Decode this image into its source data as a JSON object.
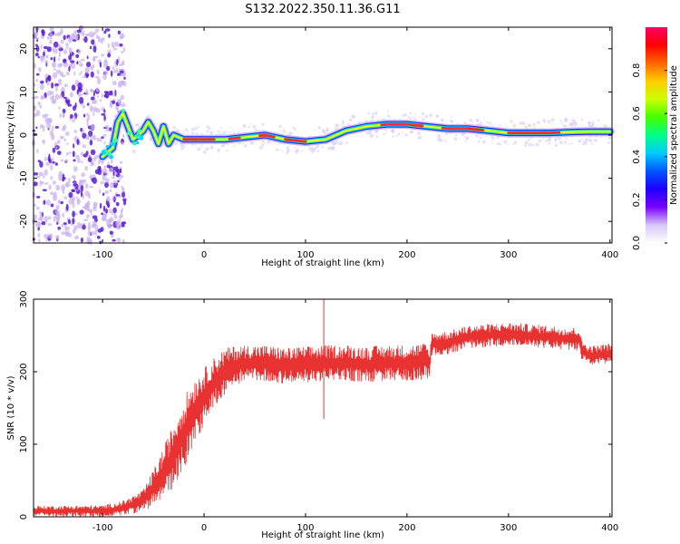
{
  "title": "S132.2022.350.11.36.G11",
  "colors": {
    "snr_line": "#e83232",
    "spectrum_track": "#ff2a2a",
    "scatter_light": "#c9b0f0",
    "scatter_dark": "#5a1fd6"
  },
  "chart_data": [
    {
      "type": "heatmap",
      "title": "S132.2022.350.11.36.G11",
      "xlabel": "Height of straight line (km)",
      "ylabel": "Frequency (Hz)",
      "xlim": [
        -168,
        402
      ],
      "ylim": [
        -25,
        25
      ],
      "xticks": [
        "-100",
        "0",
        "100",
        "200",
        "300",
        "400"
      ],
      "yticks": [
        "-20",
        "-10",
        "0",
        "10",
        "20"
      ],
      "colorbar": {
        "label": "Normalized spectral amplitude",
        "range": [
          0,
          1
        ],
        "ticks": [
          "0.0",
          "0.2",
          "0.4",
          "0.6",
          "0.8"
        ],
        "colormap": [
          "#ffffff",
          "#d8c8f8",
          "#7a00ff",
          "#1a00ff",
          "#0055ff",
          "#00ccff",
          "#00ff88",
          "#44ff00",
          "#ccff00",
          "#ffcc00",
          "#ff6600",
          "#ff0000",
          "#ff0066"
        ]
      },
      "track": {
        "x": [
          -100,
          -90,
          -85,
          -80,
          -70,
          -60,
          -55,
          -50,
          -45,
          -40,
          -35,
          -30,
          -20,
          0,
          20,
          40,
          60,
          80,
          100,
          120,
          130,
          140,
          160,
          180,
          200,
          220,
          240,
          260,
          280,
          300,
          320,
          340,
          360,
          380,
          400
        ],
        "y": [
          -5,
          -3,
          3,
          5,
          -1,
          1,
          3,
          1,
          -2,
          2,
          -2,
          0,
          -1,
          -1,
          -1,
          -0.5,
          0,
          -1,
          -1.5,
          -1,
          0,
          1,
          2,
          2.5,
          2.5,
          2,
          1.5,
          1.5,
          1,
          0.5,
          0.5,
          0.5,
          0.7,
          0.8,
          0.8
        ],
        "peak_segments": [
          [
            -20,
            10
          ],
          [
            25,
            35
          ],
          [
            55,
            70
          ],
          [
            80,
            100
          ],
          [
            175,
            215
          ],
          [
            235,
            275
          ],
          [
            300,
            350
          ]
        ]
      }
    },
    {
      "type": "line",
      "xlabel": "Height of straight line (km)",
      "ylabel": "SNR (10 * v/v)",
      "xlim": [
        -168,
        402
      ],
      "ylim": [
        0,
        300
      ],
      "xticks": [
        "-100",
        "0",
        "100",
        "200",
        "300",
        "400"
      ],
      "yticks": [
        "0",
        "100",
        "200",
        "300"
      ],
      "envelope": {
        "x": [
          -168,
          -100,
          -80,
          -60,
          -50,
          -40,
          -30,
          -20,
          -10,
          0,
          10,
          20,
          30,
          40,
          60,
          80,
          100,
          120,
          140,
          160,
          180,
          200,
          220,
          222,
          224,
          240,
          260,
          280,
          300,
          320,
          340,
          360,
          370,
          372,
          380,
          400
        ],
        "mean": [
          8,
          8,
          12,
          22,
          40,
          60,
          85,
          115,
          145,
          165,
          185,
          200,
          208,
          212,
          212,
          208,
          210,
          212,
          212,
          210,
          212,
          212,
          215,
          205,
          238,
          240,
          248,
          250,
          252,
          250,
          248,
          245,
          245,
          230,
          222,
          225
        ],
        "spread": [
          7,
          8,
          10,
          15,
          25,
          35,
          45,
          50,
          45,
          40,
          35,
          32,
          28,
          25,
          25,
          25,
          25,
          25,
          25,
          25,
          25,
          25,
          25,
          18,
          16,
          16,
          16,
          16,
          16,
          16,
          16,
          16,
          16,
          14,
          14,
          14
        ]
      },
      "spikes": [
        {
          "x": 118,
          "y": 300
        },
        {
          "x": 118,
          "y": 135
        }
      ]
    }
  ]
}
